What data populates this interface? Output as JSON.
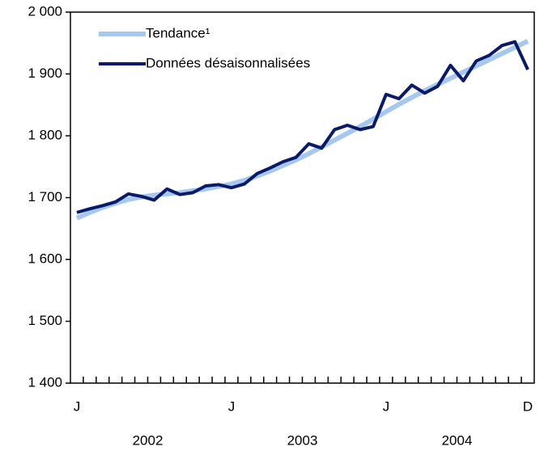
{
  "chart_data": {
    "type": "line",
    "categories": [
      "J",
      null,
      null,
      null,
      null,
      null,
      null,
      null,
      null,
      null,
      null,
      null,
      "J",
      null,
      null,
      null,
      null,
      null,
      null,
      null,
      null,
      null,
      null,
      null,
      "J",
      null,
      null,
      null,
      null,
      null,
      null,
      null,
      null,
      null,
      null,
      "D"
    ],
    "years": [
      "2002",
      "2003",
      "2004"
    ],
    "series": [
      {
        "name": "Tendance¹",
        "color": "#a6c8ee",
        "values": [
          1667,
          1676,
          1684,
          1691,
          1697,
          1701,
          1704,
          1706,
          1708,
          1711,
          1714,
          1718,
          1722,
          1728,
          1735,
          1743,
          1752,
          1761,
          1771,
          1782,
          1793,
          1804,
          1815,
          1827,
          1839,
          1851,
          1862,
          1873,
          1883,
          1893,
          1903,
          1913,
          1923,
          1933,
          1943,
          1953
        ]
      },
      {
        "name": "Données désaisonnalisées",
        "color": "#0a1a6b",
        "values": [
          1676,
          1682,
          1687,
          1693,
          1706,
          1702,
          1696,
          1714,
          1705,
          1708,
          1719,
          1721,
          1716,
          1722,
          1739,
          1748,
          1758,
          1765,
          1787,
          1780,
          1810,
          1817,
          1810,
          1815,
          1867,
          1860,
          1882,
          1869,
          1880,
          1914,
          1889,
          1921,
          1930,
          1946,
          1952,
          1907
        ]
      }
    ],
    "ylim": [
      1400,
      2000
    ],
    "yticks": [
      {
        "value": 1400,
        "label": "1 400"
      },
      {
        "value": 1500,
        "label": "1 500"
      },
      {
        "value": 1600,
        "label": "1 600"
      },
      {
        "value": 1700,
        "label": "1 700"
      },
      {
        "value": 1800,
        "label": "1 800"
      },
      {
        "value": 1900,
        "label": "1 900"
      },
      {
        "value": 2000,
        "label": "2 000"
      }
    ],
    "grid": false
  }
}
